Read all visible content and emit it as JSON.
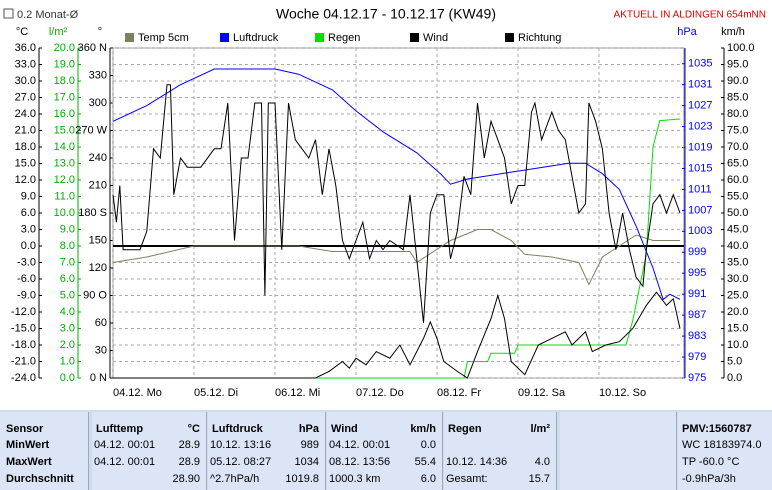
{
  "chart_data": {
    "type": "line",
    "title": "Woche 04.12.17 - 10.12.17 (KW49)",
    "subtitle": "AKTUELL IN ALDINGEN 654mNN",
    "checkbox_label": "0.2 Monat-Ø",
    "xlim": [
      0,
      168
    ],
    "xticks": [
      {
        "value": 0,
        "label": "04.12. Mo"
      },
      {
        "value": 24,
        "label": "05.12. Di"
      },
      {
        "value": 48,
        "label": "06.12. Mi"
      },
      {
        "value": 72,
        "label": "07.12. Do"
      },
      {
        "value": 96,
        "label": "08.12. Fr"
      },
      {
        "value": 120,
        "label": "09.12. Sa"
      },
      {
        "value": 144,
        "label": "10.12. So"
      }
    ],
    "axes": [
      {
        "title": "°C",
        "color": "#000000",
        "zero_line": true,
        "lim": [
          -24,
          36
        ],
        "ticks": [
          {
            "value": -24,
            "label": "-24.0"
          },
          {
            "value": -21,
            "label": "-21.0"
          },
          {
            "value": -18,
            "label": "-18.0"
          },
          {
            "value": -15,
            "label": "-15.0"
          },
          {
            "value": -12,
            "label": "-12.0"
          },
          {
            "value": -9,
            "label": "-9.0"
          },
          {
            "value": -6,
            "label": "-6.0"
          },
          {
            "value": -3,
            "label": "-3.0"
          },
          {
            "value": 0,
            "label": "0.0"
          },
          {
            "value": 3,
            "label": "3.0"
          },
          {
            "value": 6,
            "label": "6.0"
          },
          {
            "value": 9,
            "label": "9.0"
          },
          {
            "value": 12,
            "label": "12.0"
          },
          {
            "value": 15,
            "label": "15.0"
          },
          {
            "value": 18,
            "label": "18.0"
          },
          {
            "value": 21,
            "label": "21.0"
          },
          {
            "value": 24,
            "label": "24.0"
          },
          {
            "value": 27,
            "label": "27.0"
          },
          {
            "value": 30,
            "label": "30.0"
          },
          {
            "value": 33,
            "label": "33.0"
          },
          {
            "value": 36,
            "label": "36.0"
          }
        ]
      },
      {
        "title": "l/m²",
        "color": "#00b000",
        "lim": [
          0,
          20
        ],
        "ticks": [
          {
            "value": 0,
            "label": "0.0"
          },
          {
            "value": 1,
            "label": "1.0"
          },
          {
            "value": 2,
            "label": "2.0"
          },
          {
            "value": 3,
            "label": "3.0"
          },
          {
            "value": 4,
            "label": "4.0"
          },
          {
            "value": 5,
            "label": "5.0"
          },
          {
            "value": 6,
            "label": "6.0"
          },
          {
            "value": 7,
            "label": "7.0"
          },
          {
            "value": 8,
            "label": "8.0"
          },
          {
            "value": 9,
            "label": "9.0"
          },
          {
            "value": 10,
            "label": "10.0"
          },
          {
            "value": 11,
            "label": "11.0"
          },
          {
            "value": 12,
            "label": "12.0"
          },
          {
            "value": 13,
            "label": "13.0"
          },
          {
            "value": 14,
            "label": "14.0"
          },
          {
            "value": 15,
            "label": "15.0"
          },
          {
            "value": 16,
            "label": "16.0"
          },
          {
            "value": 17,
            "label": "17.0"
          },
          {
            "value": 18,
            "label": "18.0"
          },
          {
            "value": 19,
            "label": "19.0"
          },
          {
            "value": 20,
            "label": "20.0"
          }
        ]
      },
      {
        "title": "°",
        "color": "#000000",
        "lim": [
          0,
          360
        ],
        "ticks": [
          {
            "value": 0,
            "label": "0 N"
          },
          30,
          60,
          {
            "value": 90,
            "label": "90 O"
          },
          120,
          150,
          {
            "value": 180,
            "label": "180 S"
          },
          210,
          240,
          {
            "value": 270,
            "label": "270 W"
          },
          300,
          330,
          {
            "value": 360,
            "label": "360 N"
          }
        ]
      },
      {
        "title": "hPa",
        "color": "#0000ff",
        "lim": [
          975,
          1038
        ],
        "ticks": [
          975,
          979,
          983,
          987,
          991,
          995,
          999,
          1003,
          1007,
          1011,
          1015,
          1019,
          1023,
          1027,
          1031,
          1035
        ]
      },
      {
        "title": "km/h",
        "color": "#000000",
        "grid": true,
        "lim": [
          0,
          100
        ],
        "ticks": [
          {
            "value": 0,
            "label": "0.0"
          },
          {
            "value": 5,
            "label": "5.0"
          },
          {
            "value": 10,
            "label": "10.0"
          },
          {
            "value": 15,
            "label": "15.0"
          },
          {
            "value": 20,
            "label": "20.0"
          },
          {
            "value": 25,
            "label": "25.0"
          },
          {
            "value": 30,
            "label": "30.0"
          },
          {
            "value": 35,
            "label": "35.0"
          },
          {
            "value": 40,
            "label": "40.0"
          },
          {
            "value": 45,
            "label": "45.0"
          },
          {
            "value": 50,
            "label": "50.0"
          },
          {
            "value": 55,
            "label": "55.0"
          },
          {
            "value": 60,
            "label": "60.0"
          },
          {
            "value": 65,
            "label": "65.0"
          },
          {
            "value": 70,
            "label": "70.0"
          },
          {
            "value": 75,
            "label": "75.0"
          },
          {
            "value": 80,
            "label": "80.0"
          },
          {
            "value": 85,
            "label": "85.0"
          },
          {
            "value": 90,
            "label": "90.0"
          },
          {
            "value": 95,
            "label": "95.0"
          },
          {
            "value": 100,
            "label": "100.0"
          }
        ]
      }
    ],
    "series": [
      {
        "name": "Temp 5cm",
        "color": "#808060",
        "axis": 0,
        "x": [
          0,
          10,
          24,
          40,
          55,
          65,
          72,
          80,
          88,
          90,
          95,
          100,
          108,
          112,
          118,
          122,
          130,
          138,
          141,
          145,
          150,
          155,
          160,
          168
        ],
        "values": [
          -3,
          -2,
          0,
          0,
          0,
          -1,
          -1,
          -1,
          -1,
          -3,
          -1,
          1,
          3,
          3,
          1,
          -1.5,
          -2,
          -3,
          -7,
          -2,
          0,
          2,
          1,
          1
        ]
      },
      {
        "name": "Luftdruck",
        "color": "#0000ff",
        "axis": 3,
        "x": [
          0,
          10,
          20,
          30,
          40,
          48,
          55,
          65,
          72,
          80,
          90,
          97,
          100,
          105,
          115,
          125,
          135,
          140,
          145,
          150,
          155,
          160,
          163,
          165,
          168
        ],
        "values": [
          1024,
          1027,
          1031,
          1034,
          1034,
          1034,
          1033,
          1030,
          1026,
          1022,
          1018,
          1014,
          1012,
          1013,
          1014,
          1015,
          1016,
          1016,
          1014,
          1011,
          1004,
          996,
          990,
          991,
          990
        ]
      },
      {
        "name": "Regen",
        "color": "#00e000",
        "axis": 1,
        "x": [
          0,
          104,
          105,
          111,
          112,
          119,
          120,
          152,
          154,
          158,
          160,
          162,
          168
        ],
        "values": [
          0,
          0,
          1,
          1,
          1.5,
          1.5,
          2,
          2,
          3.5,
          7.5,
          14,
          15.6,
          15.7
        ]
      },
      {
        "name": "Wind",
        "color": "#000000",
        "axis": 4,
        "x": [
          0,
          60,
          64,
          68,
          70,
          72,
          75,
          78,
          82,
          85,
          88,
          92,
          94,
          96,
          98,
          102,
          105,
          108,
          112,
          114,
          116,
          118,
          122,
          126,
          130,
          134,
          136,
          140,
          142,
          146,
          150,
          154,
          158,
          161,
          164,
          166,
          168
        ],
        "values": [
          0,
          0,
          2,
          5,
          3,
          6,
          4,
          8,
          6,
          10,
          4,
          12,
          17,
          12,
          5,
          2,
          0,
          8,
          18,
          25,
          18,
          5,
          1,
          10,
          12,
          14,
          10,
          14,
          8,
          10,
          11,
          15,
          22,
          26,
          22,
          24,
          15
        ]
      },
      {
        "name": "Richtung",
        "color": "#000000",
        "axis": 2,
        "x": [
          0,
          1,
          2,
          3,
          8,
          10,
          12,
          14,
          16,
          17,
          18,
          20,
          22,
          26,
          30,
          32,
          34,
          36,
          38,
          40,
          42,
          44,
          45,
          46,
          48,
          50,
          52,
          54,
          56,
          58,
          60,
          62,
          64,
          66,
          68,
          70,
          72,
          74,
          76,
          78,
          80,
          82,
          86,
          88,
          90,
          92,
          94,
          96,
          98,
          100,
          102,
          104,
          106,
          108,
          110,
          112,
          114,
          116,
          118,
          120,
          122,
          124,
          125,
          127,
          130,
          132,
          134,
          136,
          138,
          140,
          141,
          143,
          145,
          147,
          149,
          151,
          153,
          155,
          157,
          158,
          160,
          162,
          164,
          166,
          168
        ],
        "values": [
          200,
          170,
          210,
          140,
          140,
          160,
          250,
          240,
          320,
          320,
          200,
          240,
          230,
          230,
          250,
          250,
          300,
          150,
          240,
          240,
          300,
          300,
          90,
          300,
          300,
          140,
          300,
          260,
          250,
          240,
          260,
          200,
          250,
          210,
          150,
          130,
          150,
          170,
          130,
          150,
          140,
          150,
          140,
          200,
          130,
          60,
          180,
          200,
          200,
          130,
          160,
          220,
          200,
          300,
          240,
          280,
          260,
          240,
          190,
          210,
          210,
          290,
          300,
          260,
          290,
          270,
          260,
          220,
          180,
          190,
          300,
          280,
          250,
          180,
          140,
          180,
          140,
          110,
          100,
          140,
          190,
          200,
          180,
          200,
          180
        ]
      }
    ]
  },
  "stats": {
    "sensor": [
      "Sensor",
      "MinWert",
      "MaxWert",
      "Durchschnitt"
    ],
    "groups": [
      {
        "name": "Lufttemp",
        "unit": "°C",
        "rows": [
          {
            "time": "04.12.  00:01",
            "value": "28.9"
          },
          {
            "time": "04.12.  00:01",
            "value": "28.9"
          },
          {
            "value": "28.90"
          }
        ]
      },
      {
        "name": "Luftdruck",
        "unit": "hPa",
        "rows": [
          {
            "time": "10.12.  13:16",
            "value": "989"
          },
          {
            "time": "05.12.  08:27",
            "value": "1034"
          },
          {
            "time": "^2.7hPa/h",
            "value": "1019.8"
          }
        ]
      },
      {
        "name": "Wind",
        "unit": "km/h",
        "rows": [
          {
            "time": "04.12.  00:01",
            "value": "0.0"
          },
          {
            "time": "08.12.  13:56",
            "value": "55.4"
          },
          {
            "time": "1000.3 km",
            "value": "6.0"
          }
        ]
      },
      {
        "name": "Regen",
        "unit": "l/m²",
        "rows": [
          {},
          {
            "time": "10.12.  14:36",
            "value": "4.0"
          },
          {
            "time": "Gesamt:",
            "value": "15.7"
          }
        ]
      }
    ],
    "pmv": [
      "PMV:1560787",
      "WC 18183974.0",
      "TP -60.0 °C",
      "-0.9hPa/3h"
    ]
  }
}
